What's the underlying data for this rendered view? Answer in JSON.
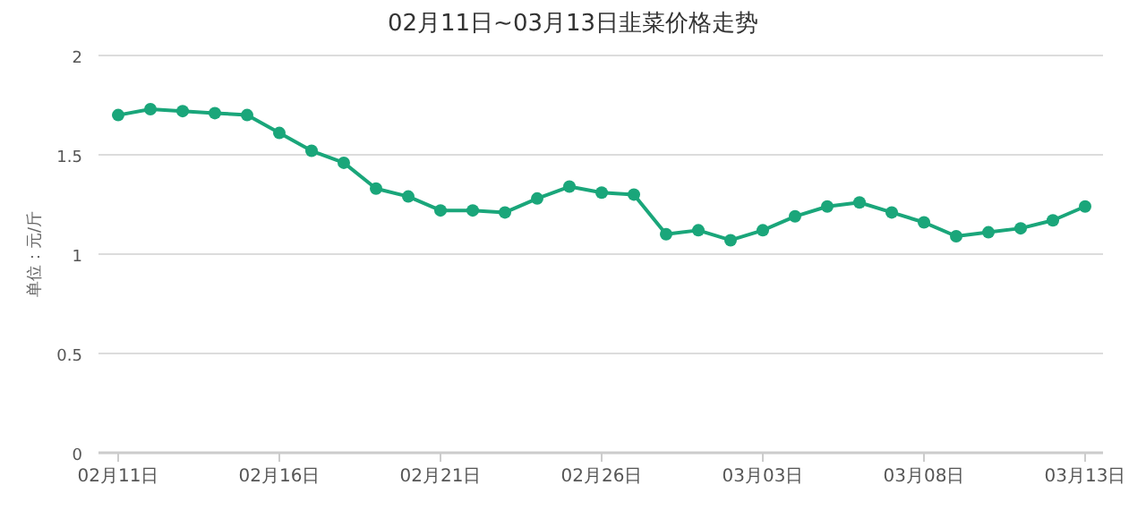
{
  "chart_data": {
    "type": "line",
    "title": "02月11日~03月13日韭菜价格走势",
    "ylabel": "单位：元/斤",
    "categories": [
      "02月11日",
      null,
      null,
      null,
      null,
      "02月16日",
      null,
      null,
      null,
      null,
      "02月21日",
      null,
      null,
      null,
      null,
      "02月26日",
      null,
      null,
      null,
      null,
      "03月03日",
      null,
      null,
      null,
      null,
      "03月08日",
      null,
      null,
      null,
      null,
      "03月13日"
    ],
    "series": [
      {
        "color": "#1aa67a",
        "values": [
          1.7,
          1.73,
          1.72,
          1.71,
          1.7,
          1.61,
          1.52,
          1.46,
          1.33,
          1.29,
          1.22,
          1.22,
          1.21,
          1.28,
          1.34,
          1.31,
          1.3,
          1.1,
          1.12,
          1.07,
          1.12,
          1.19,
          1.24,
          1.26,
          1.21,
          1.16,
          1.09,
          1.11,
          1.13,
          1.17,
          1.24
        ]
      }
    ],
    "ylim": [
      0,
      2
    ],
    "yticks": [
      0,
      0.5,
      1,
      1.5,
      2
    ],
    "grid": "y",
    "marker": "circle",
    "line_style": "solid"
  }
}
